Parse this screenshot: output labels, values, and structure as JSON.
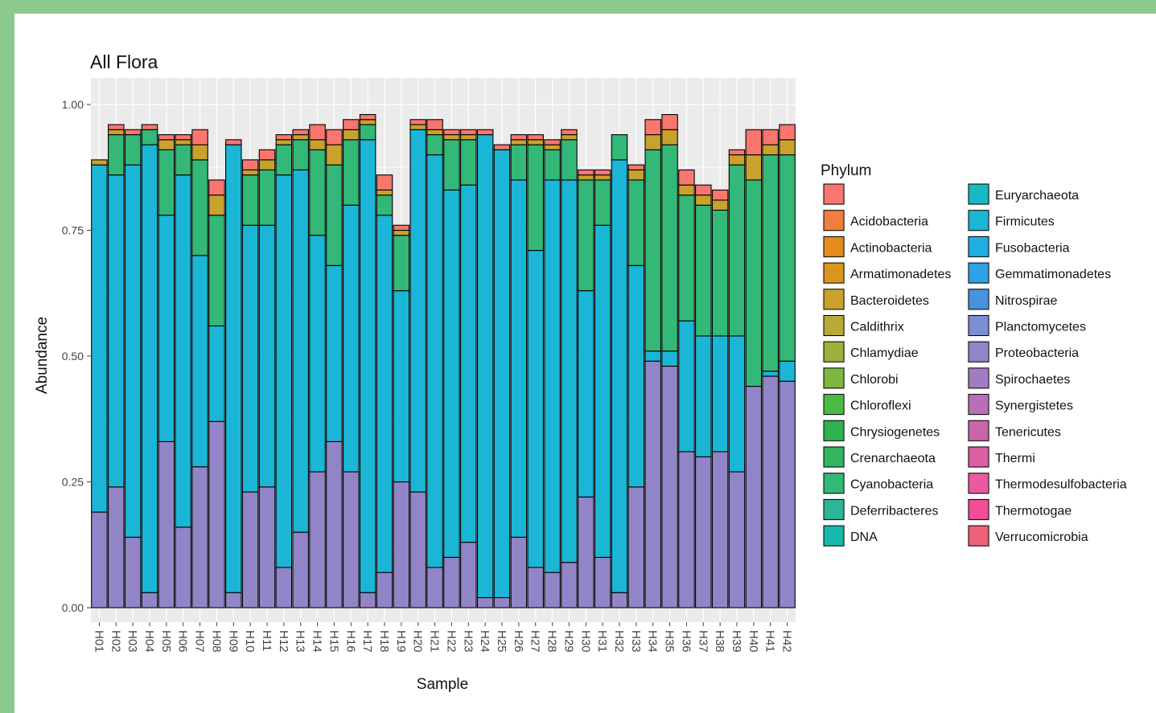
{
  "chart_data": {
    "type": "bar",
    "stacked": true,
    "title": "All Flora",
    "xlabel": "Sample",
    "ylabel": "Abundance",
    "ylim": [
      0,
      1
    ],
    "yticks": [
      "0.00",
      "0.25",
      "0.50",
      "0.75",
      "1.00"
    ],
    "ytick_values": [
      0,
      0.25,
      0.5,
      0.75,
      1.0
    ],
    "grid": true,
    "legend_position": "right",
    "legend_title": "Phylum",
    "categories": [
      "H01",
      "H02",
      "H03",
      "H04",
      "H05",
      "H06",
      "H07",
      "H08",
      "H09",
      "H10",
      "H11",
      "H12",
      "H13",
      "H14",
      "H15",
      "H16",
      "H17",
      "H18",
      "H19",
      "H20",
      "H21",
      "H22",
      "H23",
      "H24",
      "H25",
      "H26",
      "H27",
      "H28",
      "H29",
      "H30",
      "H31",
      "H32",
      "H33",
      "H34",
      "H35",
      "H36",
      "H37",
      "H38",
      "H39",
      "H40",
      "H41",
      "H42"
    ],
    "legend": [
      {
        "name": "",
        "color": "#F8766D"
      },
      {
        "name": "Acidobacteria",
        "color": "#F07E3F"
      },
      {
        "name": "Actinobacteria",
        "color": "#E58C1E"
      },
      {
        "name": "Armatimonadetes",
        "color": "#D9961F"
      },
      {
        "name": "Bacteroidetes",
        "color": "#C9A22E"
      },
      {
        "name": "Caldithrix",
        "color": "#B5AB36"
      },
      {
        "name": "Chlamydiae",
        "color": "#9EB03A"
      },
      {
        "name": "Chlorobi",
        "color": "#7CB73E"
      },
      {
        "name": "Chloroflexi",
        "color": "#4CBB45"
      },
      {
        "name": "Chrysiogenetes",
        "color": "#2FB34F"
      },
      {
        "name": "Crenarchaeota",
        "color": "#33B45E"
      },
      {
        "name": "Cyanobacteria",
        "color": "#33B877"
      },
      {
        "name": "Deferribacteres",
        "color": "#2BB795"
      },
      {
        "name": "DNA",
        "color": "#19B8AD"
      },
      {
        "name": "Euryarchaeota",
        "color": "#18B9C2"
      },
      {
        "name": "Firmicutes",
        "color": "#1BB6D5"
      },
      {
        "name": "Fusobacteria",
        "color": "#22AEE3"
      },
      {
        "name": "Gemmatimonadetes",
        "color": "#2DA3E6"
      },
      {
        "name": "Nitrospirae",
        "color": "#4694DE"
      },
      {
        "name": "Planctomycetes",
        "color": "#7B8ED4"
      },
      {
        "name": "Proteobacteria",
        "color": "#9285C7"
      },
      {
        "name": "Spirochaetes",
        "color": "#A47BC3"
      },
      {
        "name": "Synergistetes",
        "color": "#B86FB8"
      },
      {
        "name": "Tenericutes",
        "color": "#C866A9"
      },
      {
        "name": "Thermi",
        "color": "#DA5FA5"
      },
      {
        "name": "Thermodesulfobacteria",
        "color": "#EB5AA0"
      },
      {
        "name": "Thermotogae",
        "color": "#F34C96"
      },
      {
        "name": "Verrucomicrobia",
        "color": "#EE6176"
      }
    ],
    "series": [
      {
        "name": "Proteobacteria",
        "color": "#9285C7",
        "values": [
          0.19,
          0.24,
          0.14,
          0.03,
          0.33,
          0.16,
          0.28,
          0.37,
          0.03,
          0.23,
          0.24,
          0.08,
          0.15,
          0.27,
          0.33,
          0.27,
          0.03,
          0.07,
          0.25,
          0.23,
          0.08,
          0.1,
          0.13,
          0.02,
          0.02,
          0.14,
          0.08,
          0.07,
          0.09,
          0.22,
          0.1,
          0.03,
          0.24,
          0.49,
          0.48,
          0.31,
          0.3,
          0.31,
          0.27,
          0.44,
          0.46,
          0.45
        ]
      },
      {
        "name": "Firmicutes",
        "color": "#1BB6D5",
        "values": [
          0.69,
          0.62,
          0.74,
          0.89,
          0.45,
          0.7,
          0.42,
          0.19,
          0.89,
          0.53,
          0.52,
          0.78,
          0.72,
          0.47,
          0.35,
          0.53,
          0.9,
          0.71,
          0.38,
          0.72,
          0.82,
          0.73,
          0.71,
          0.92,
          0.89,
          0.71,
          0.63,
          0.78,
          0.76,
          0.41,
          0.66,
          0.86,
          0.44,
          0.02,
          0.03,
          0.26,
          0.24,
          0.23,
          0.27,
          0.0,
          0.01,
          0.04
        ]
      },
      {
        "name": "Cyanobacteria",
        "color": "#33B877",
        "values": [
          0.0,
          0.08,
          0.06,
          0.03,
          0.13,
          0.06,
          0.19,
          0.22,
          0.0,
          0.1,
          0.11,
          0.06,
          0.06,
          0.17,
          0.2,
          0.13,
          0.03,
          0.04,
          0.11,
          0.0,
          0.04,
          0.1,
          0.09,
          0.0,
          0.0,
          0.07,
          0.21,
          0.06,
          0.08,
          0.22,
          0.09,
          0.05,
          0.17,
          0.4,
          0.41,
          0.25,
          0.26,
          0.25,
          0.34,
          0.41,
          0.43,
          0.41
        ]
      },
      {
        "name": "Bacteroidetes",
        "color": "#C9A22E",
        "values": [
          0.01,
          0.01,
          0.0,
          0.0,
          0.02,
          0.01,
          0.03,
          0.04,
          0.0,
          0.01,
          0.02,
          0.01,
          0.01,
          0.02,
          0.04,
          0.02,
          0.01,
          0.01,
          0.01,
          0.01,
          0.01,
          0.01,
          0.01,
          0.0,
          0.0,
          0.01,
          0.01,
          0.01,
          0.01,
          0.01,
          0.01,
          0.0,
          0.02,
          0.03,
          0.03,
          0.02,
          0.02,
          0.02,
          0.02,
          0.05,
          0.02,
          0.03
        ]
      },
      {
        "name": "",
        "color": "#F8766D",
        "values": [
          0.0,
          0.01,
          0.01,
          0.01,
          0.01,
          0.01,
          0.03,
          0.03,
          0.01,
          0.02,
          0.02,
          0.01,
          0.01,
          0.03,
          0.03,
          0.02,
          0.01,
          0.03,
          0.01,
          0.01,
          0.02,
          0.01,
          0.01,
          0.01,
          0.01,
          0.01,
          0.01,
          0.01,
          0.01,
          0.01,
          0.01,
          0.0,
          0.01,
          0.03,
          0.03,
          0.03,
          0.02,
          0.02,
          0.01,
          0.05,
          0.03,
          0.03
        ]
      }
    ]
  }
}
